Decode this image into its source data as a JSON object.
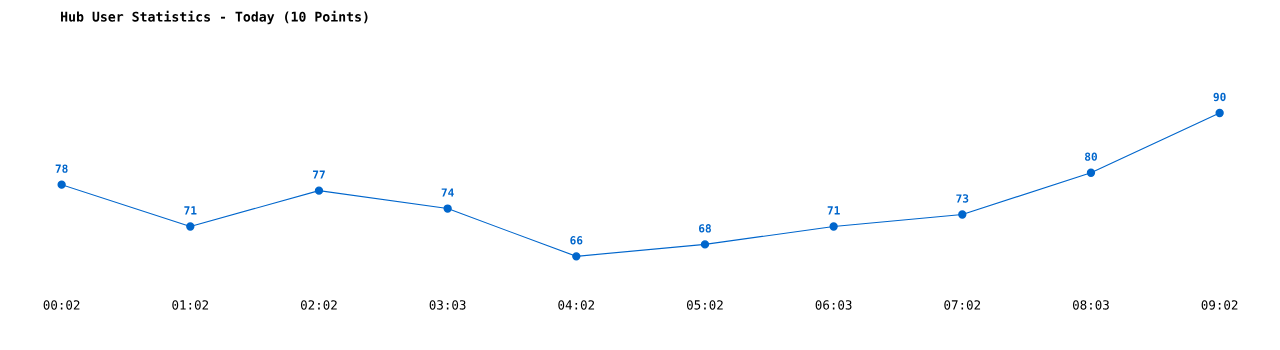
{
  "chart_data": {
    "type": "line",
    "title": "Hub User Statistics - Today (10 Points)",
    "categories": [
      "00:02",
      "01:02",
      "02:02",
      "03:03",
      "04:02",
      "05:02",
      "06:03",
      "07:02",
      "08:03",
      "09:02"
    ],
    "series": [
      {
        "color": "#0066cc",
        "values": [
          78,
          71,
          77,
          74,
          66,
          68,
          71,
          73,
          80,
          90
        ]
      }
    ],
    "data_labels": true,
    "marker": "circle",
    "line_style": "solid",
    "grid": false,
    "legend": false,
    "tick_labels": "x"
  }
}
